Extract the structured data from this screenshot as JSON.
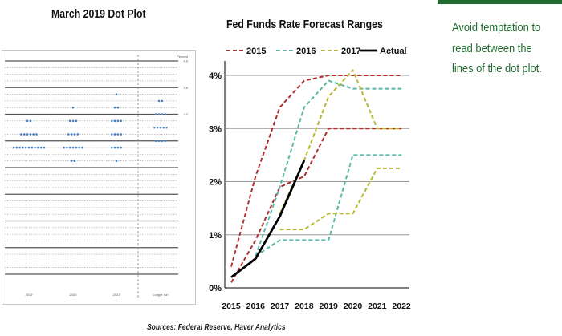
{
  "dot_plot": {
    "title": "March 2019 Dot Plot",
    "right_header": "Percent",
    "x_labels": [
      "2019",
      "2020",
      "2021",
      "Longer run"
    ],
    "y_labels": [
      "3.0",
      "3.5",
      "4.0"
    ]
  },
  "side_note": {
    "text": "Avoid temptation to read between the lines of the dot plot."
  },
  "sources": "Sources: Federal Reserve, Haver Analytics",
  "chart_data": [
    {
      "type": "scatter",
      "title": "March 2019 Dot Plot",
      "xlabel": "",
      "ylabel": "",
      "y_tick_labels_visible": [
        "3.0",
        "3.5",
        "4.0"
      ],
      "ylim": [
        0.0,
        4.0
      ],
      "categories": [
        "2019",
        "2020",
        "2021",
        "Longer run"
      ],
      "dots": [
        {
          "x": "2019",
          "y": 2.875,
          "count": 2
        },
        {
          "x": "2019",
          "y": 2.625,
          "count": 6
        },
        {
          "x": "2019",
          "y": 2.375,
          "count": 11
        },
        {
          "x": "2020",
          "y": 3.125,
          "count": 1
        },
        {
          "x": "2020",
          "y": 2.875,
          "count": 3
        },
        {
          "x": "2020",
          "y": 2.625,
          "count": 4
        },
        {
          "x": "2020",
          "y": 2.375,
          "count": 7
        },
        {
          "x": "2020",
          "y": 2.125,
          "count": 2
        },
        {
          "x": "2021",
          "y": 3.375,
          "count": 1
        },
        {
          "x": "2021",
          "y": 3.125,
          "count": 2
        },
        {
          "x": "2021",
          "y": 2.875,
          "count": 4
        },
        {
          "x": "2021",
          "y": 2.625,
          "count": 4
        },
        {
          "x": "2021",
          "y": 2.375,
          "count": 4
        },
        {
          "x": "2021",
          "y": 2.125,
          "count": 1
        },
        {
          "x": "Longer run",
          "y": 3.25,
          "count": 2
        },
        {
          "x": "Longer run",
          "y": 3.0,
          "count": 4
        },
        {
          "x": "Longer run",
          "y": 2.75,
          "count": 5
        },
        {
          "x": "Longer run",
          "y": 2.5,
          "count": 4
        }
      ],
      "grid": true,
      "legend": "none"
    },
    {
      "type": "line",
      "title": "Fed Funds Rate Forecast Ranges",
      "xlabel": "",
      "ylabel": "",
      "x": [
        2015,
        2016,
        2017,
        2018,
        2019,
        2020,
        2021,
        2022
      ],
      "ylim": [
        0,
        4.5
      ],
      "y_ticks": [
        "0%",
        "1%",
        "2%",
        "3%",
        "4%"
      ],
      "grid": true,
      "legend": "top",
      "series": [
        {
          "name": "2015",
          "color": "#b03030",
          "dash": true,
          "upper": [
            [
              2015,
              0.4
            ],
            [
              2016,
              2.1
            ],
            [
              2017,
              3.4
            ],
            [
              2018,
              3.9
            ],
            [
              2019,
              4.0
            ],
            [
              2020,
              4.0
            ],
            [
              2021,
              4.0
            ],
            [
              2022,
              4.0
            ]
          ],
          "lower": [
            [
              2015,
              0.1
            ],
            [
              2016,
              0.9
            ],
            [
              2017,
              1.9
            ],
            [
              2018,
              2.1
            ],
            [
              2019,
              3.0
            ],
            [
              2020,
              3.0
            ],
            [
              2021,
              3.0
            ],
            [
              2022,
              3.0
            ]
          ]
        },
        {
          "name": "2016",
          "color": "#5cb8a8",
          "dash": true,
          "upper": [
            [
              2016,
              0.6
            ],
            [
              2017,
              1.9
            ],
            [
              2018,
              3.4
            ],
            [
              2019,
              3.9
            ],
            [
              2020,
              3.75
            ],
            [
              2021,
              3.75
            ],
            [
              2022,
              3.75
            ]
          ],
          "lower": [
            [
              2016,
              0.6
            ],
            [
              2017,
              0.9
            ],
            [
              2018,
              0.9
            ],
            [
              2019,
              0.9
            ],
            [
              2020,
              2.5
            ],
            [
              2021,
              2.5
            ],
            [
              2022,
              2.5
            ]
          ]
        },
        {
          "name": "2017",
          "color": "#b8b830",
          "dash": true,
          "upper": [
            [
              2017,
              1.4
            ],
            [
              2018,
              2.4
            ],
            [
              2019,
              3.6
            ],
            [
              2020,
              4.1
            ],
            [
              2021,
              3.0
            ],
            [
              2022,
              3.0
            ]
          ],
          "lower": [
            [
              2017,
              1.1
            ],
            [
              2018,
              1.1
            ],
            [
              2019,
              1.4
            ],
            [
              2020,
              1.4
            ],
            [
              2021,
              2.25
            ],
            [
              2022,
              2.25
            ]
          ]
        },
        {
          "name": "Actual",
          "color": "#000000",
          "dash": false,
          "points": [
            [
              2015,
              0.2
            ],
            [
              2016,
              0.55
            ],
            [
              2017,
              1.35
            ],
            [
              2018,
              2.4
            ]
          ]
        }
      ]
    }
  ]
}
